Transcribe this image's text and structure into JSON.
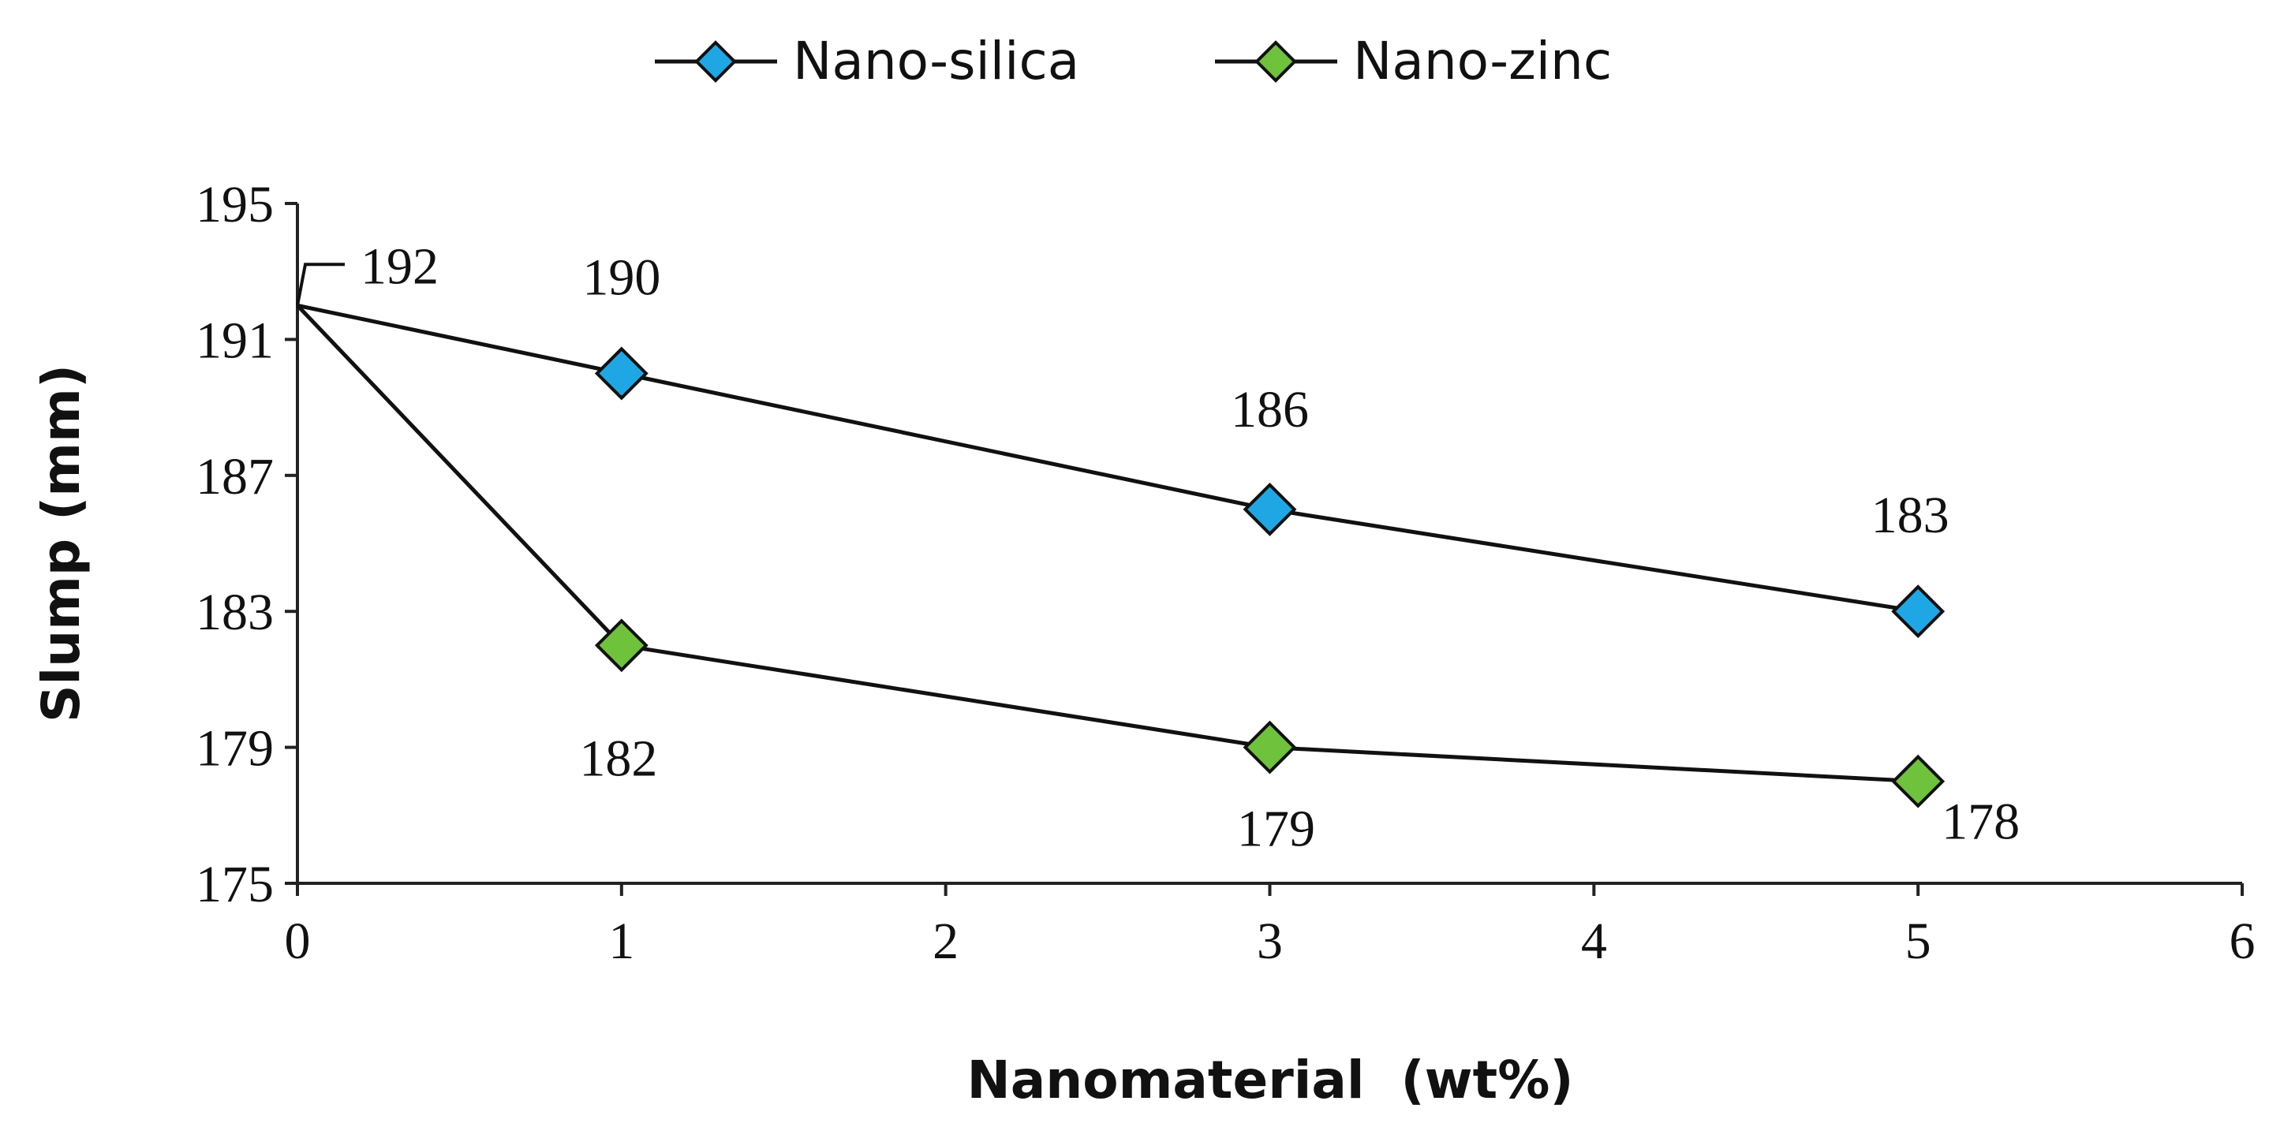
{
  "chart_data": {
    "type": "line",
    "title": "",
    "xlabel": "Nanomaterial  (wt%)",
    "ylabel": "Slump (mm)",
    "xlim": [
      0,
      6
    ],
    "ylim": [
      175,
      195
    ],
    "x_ticks": [
      "0",
      "1",
      "2",
      "3",
      "4",
      "5",
      "6"
    ],
    "y_ticks": [
      "175",
      "179",
      "183",
      "187",
      "191",
      "195"
    ],
    "grid": false,
    "legend_position": "top-center",
    "series": [
      {
        "name": "Nano-silica",
        "color": "#1ea7e4",
        "x": [
          0,
          1,
          3,
          5
        ],
        "y": [
          192,
          190,
          186,
          183
        ]
      },
      {
        "name": "Nano-zinc",
        "color": "#6fc23c",
        "x": [
          0,
          1,
          3,
          5
        ],
        "y": [
          192,
          182,
          179,
          178
        ]
      }
    ],
    "data_labels": [
      {
        "text": "192",
        "x": 0,
        "y": 192
      },
      {
        "text": "190",
        "x": 1,
        "y": 190
      },
      {
        "text": "186",
        "x": 3,
        "y": 186
      },
      {
        "text": "183",
        "x": 5,
        "y": 183
      },
      {
        "text": "182",
        "x": 1,
        "y": 182
      },
      {
        "text": "179",
        "x": 3,
        "y": 179
      },
      {
        "text": "178",
        "x": 5,
        "y": 178
      }
    ]
  }
}
